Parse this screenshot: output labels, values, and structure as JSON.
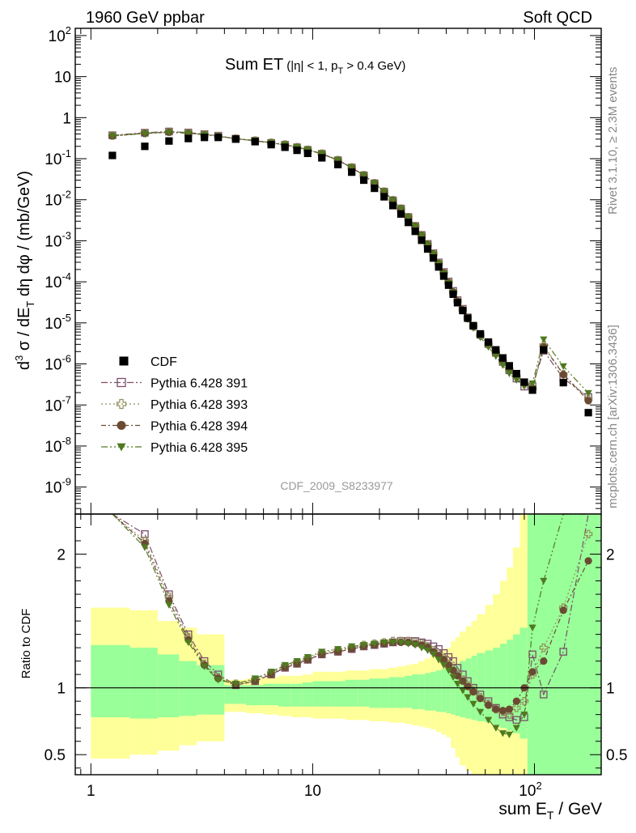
{
  "header": {
    "left": "1960 GeV ppbar",
    "right": "Soft QCD"
  },
  "side_text": {
    "rivet": "Rivet 3.1.10, ≥ 2.3M events",
    "mcplots": "mcplots.cern.ch [arXiv:1306.3436]"
  },
  "chart_data": {
    "type": "scatter",
    "title_main": "Sum ET",
    "title_cond": "(|η| < 1, p",
    "title_cond_sub": "T",
    "title_cond_end": " > 0.4 GeV)",
    "analysis_id": "CDF_2009_S8233977",
    "xlabel_pre": "sum E",
    "xlabel_sub": "T",
    "xlabel_post": " / GeV",
    "ylabel_pre": "d",
    "ylabel_sup": "3",
    "ylabel_mid": " σ / dE",
    "ylabel_sub": "T",
    "ylabel_post": " dη dφ / (mb/GeV)",
    "ratio_ylabel": "Ratio to CDF",
    "x_scale": "log",
    "xlim": [
      0.85,
      200
    ],
    "x_ticks": [
      {
        "v": 1,
        "label": "1"
      },
      {
        "v": 10,
        "label": "10"
      },
      {
        "v": 100,
        "label": "10",
        "sup": "2"
      }
    ],
    "main_y_scale": "log",
    "main_ylim": [
      2.2e-10,
      150
    ],
    "main_y_ticks": [
      {
        "v": 1e-09,
        "label": "10",
        "sup": "-9"
      },
      {
        "v": 1e-08,
        "label": "10",
        "sup": "-8"
      },
      {
        "v": 1e-07,
        "label": "10",
        "sup": "-7"
      },
      {
        "v": 1e-06,
        "label": "10",
        "sup": "-6"
      },
      {
        "v": 1e-05,
        "label": "10",
        "sup": "-5"
      },
      {
        "v": 0.0001,
        "label": "10",
        "sup": "-4"
      },
      {
        "v": 0.001,
        "label": "10",
        "sup": "-3"
      },
      {
        "v": 0.01,
        "label": "10",
        "sup": "-2"
      },
      {
        "v": 0.1,
        "label": "10",
        "sup": "-1"
      },
      {
        "v": 1,
        "label": "1",
        "sup": ""
      },
      {
        "v": 10,
        "label": "10",
        "sup": ""
      },
      {
        "v": 100,
        "label": "10",
        "sup": "2"
      }
    ],
    "ratio_ylim": [
      0.35,
      2.3
    ],
    "ratio_y_ticks": [
      {
        "v": 0.5,
        "label": "0.5"
      },
      {
        "v": 1,
        "label": "1"
      },
      {
        "v": 2,
        "label": "2"
      }
    ],
    "legend_position": "bottom-left",
    "legend": [
      {
        "name": "CDF",
        "marker": "filled-square",
        "color": "#000000"
      },
      {
        "name": "Pythia 6.428 391",
        "marker": "open-square",
        "color": "#7a4f6a",
        "dash": "8,3,2,3"
      },
      {
        "name": "Pythia 6.428 393",
        "marker": "open-cross",
        "color": "#958f5b",
        "dash": "2,3"
      },
      {
        "name": "Pythia 6.428 394",
        "marker": "filled-circle",
        "color": "#6a4a33",
        "dash": "6,3,2,3"
      },
      {
        "name": "Pythia 6.428 395",
        "marker": "filled-triangle-down",
        "color": "#4f7a20",
        "dash": "8,3,2,3,2,3"
      }
    ],
    "cdf_points": [
      [
        1.25,
        0.12
      ],
      [
        1.75,
        0.2
      ],
      [
        2.25,
        0.27
      ],
      [
        2.75,
        0.31
      ],
      [
        3.25,
        0.33
      ],
      [
        3.75,
        0.33
      ],
      [
        4.5,
        0.3
      ],
      [
        5.5,
        0.26
      ],
      [
        6.5,
        0.22
      ],
      [
        7.5,
        0.19
      ],
      [
        8.5,
        0.16
      ],
      [
        9.5,
        0.135
      ],
      [
        11,
        0.105
      ],
      [
        13,
        0.072
      ],
      [
        15,
        0.047
      ],
      [
        17,
        0.03
      ],
      [
        19,
        0.019
      ],
      [
        21,
        0.0118
      ],
      [
        23,
        0.0072
      ],
      [
        25,
        0.0045
      ],
      [
        27,
        0.0028
      ],
      [
        29,
        0.0017
      ],
      [
        31,
        0.00103
      ],
      [
        33,
        0.00063
      ],
      [
        35,
        0.00038
      ],
      [
        37,
        0.00023
      ],
      [
        39,
        0.000138
      ],
      [
        41,
        8.3e-05
      ],
      [
        43,
        5e-05
      ],
      [
        45,
        3.1e-05
      ],
      [
        47.5,
        2e-05
      ],
      [
        50,
        1.3e-05
      ],
      [
        53,
        8.5e-06
      ],
      [
        57,
        5.4e-06
      ],
      [
        62,
        3.4e-06
      ],
      [
        67,
        2.2e-06
      ],
      [
        72,
        1.4e-06
      ],
      [
        77,
        9e-07
      ],
      [
        83,
        5.8e-07
      ],
      [
        90,
        3.6e-07
      ],
      [
        98,
        2.3e-07
      ],
      [
        110,
        2.2e-06
      ],
      [
        135,
        3.5e-07
      ],
      [
        175,
        6.5e-08
      ]
    ],
    "ratio_reference_x": [
      1.25,
      1.75,
      2.25,
      2.75,
      3.25,
      3.75,
      4.5,
      5.5,
      6.5,
      7.5,
      8.5,
      9.5,
      11,
      13,
      15,
      17,
      19,
      21,
      23,
      25,
      27,
      29,
      31,
      33,
      35,
      37,
      39,
      41,
      43,
      45,
      47.5,
      50,
      53,
      57,
      62,
      67,
      72,
      77,
      83,
      90,
      98,
      110,
      135,
      175
    ],
    "series": [
      {
        "name": "Pythia 6.428 391",
        "ratio": [
          3.1,
          2.15,
          1.7,
          1.4,
          1.2,
          1.1,
          1.02,
          1.05,
          1.1,
          1.15,
          1.18,
          1.21,
          1.25,
          1.27,
          1.29,
          1.31,
          1.32,
          1.33,
          1.34,
          1.35,
          1.35,
          1.35,
          1.34,
          1.33,
          1.31,
          1.29,
          1.26,
          1.23,
          1.2,
          1.15,
          1.1,
          1.05,
          1.0,
          0.95,
          0.9,
          0.85,
          0.8,
          0.78,
          0.76,
          0.78,
          1.25,
          0.95,
          1.27,
          2.4
        ]
      },
      {
        "name": "Pythia 6.428 393",
        "ratio": [
          3.05,
          2.1,
          1.68,
          1.38,
          1.18,
          1.08,
          1.03,
          1.06,
          1.11,
          1.16,
          1.19,
          1.22,
          1.26,
          1.28,
          1.3,
          1.32,
          1.33,
          1.34,
          1.35,
          1.35,
          1.35,
          1.34,
          1.33,
          1.31,
          1.28,
          1.25,
          1.22,
          1.18,
          1.14,
          1.1,
          1.06,
          1.02,
          0.98,
          0.93,
          0.88,
          0.84,
          0.82,
          0.8,
          0.85,
          0.9,
          1.1,
          1.3,
          1.6,
          2.15
        ]
      },
      {
        "name": "Pythia 6.428 394",
        "ratio": [
          3.0,
          2.08,
          1.65,
          1.36,
          1.17,
          1.07,
          1.02,
          1.05,
          1.1,
          1.15,
          1.18,
          1.21,
          1.25,
          1.27,
          1.29,
          1.31,
          1.32,
          1.33,
          1.34,
          1.34,
          1.34,
          1.33,
          1.32,
          1.3,
          1.27,
          1.24,
          1.21,
          1.17,
          1.13,
          1.09,
          1.05,
          1.01,
          0.97,
          0.92,
          0.87,
          0.84,
          0.83,
          0.84,
          0.9,
          1.0,
          1.12,
          1.2,
          1.58,
          1.95
        ]
      },
      {
        "name": "Pythia 6.428 395",
        "ratio": [
          2.98,
          2.05,
          1.62,
          1.34,
          1.16,
          1.06,
          1.03,
          1.07,
          1.12,
          1.17,
          1.2,
          1.23,
          1.27,
          1.29,
          1.31,
          1.32,
          1.33,
          1.34,
          1.34,
          1.34,
          1.33,
          1.32,
          1.3,
          1.28,
          1.25,
          1.21,
          1.17,
          1.13,
          1.08,
          1.03,
          0.98,
          0.93,
          0.88,
          0.82,
          0.76,
          0.7,
          0.66,
          0.65,
          0.7,
          0.8,
          1.45,
          1.8,
          2.5,
          3.0
        ]
      }
    ],
    "band_inner_color": "#99ff99",
    "band_outer_color": "#ffff99",
    "uncertainty_bands": [
      {
        "x0": 1.0,
        "x1": 1.5,
        "inner": [
          0.78,
          1.32
        ],
        "outer": [
          0.47,
          1.6
        ]
      },
      {
        "x0": 1.5,
        "x1": 2.0,
        "inner": [
          0.77,
          1.3
        ],
        "outer": [
          0.5,
          1.58
        ]
      },
      {
        "x0": 2.0,
        "x1": 2.5,
        "inner": [
          0.78,
          1.25
        ],
        "outer": [
          0.53,
          1.5
        ]
      },
      {
        "x0": 2.5,
        "x1": 3.0,
        "inner": [
          0.79,
          1.2
        ],
        "outer": [
          0.57,
          1.45
        ]
      },
      {
        "x0": 3.0,
        "x1": 4.0,
        "inner": [
          0.8,
          1.17
        ],
        "outer": [
          0.6,
          1.4
        ]
      },
      {
        "x0": 4.0,
        "x1": 5.0,
        "inner": [
          0.88,
          1.02
        ],
        "outer": [
          0.82,
          1.06
        ]
      },
      {
        "x0": 5.0,
        "x1": 6.0,
        "inner": [
          0.87,
          1.02
        ],
        "outer": [
          0.81,
          1.07
        ]
      },
      {
        "x0": 6.0,
        "x1": 7.0,
        "inner": [
          0.87,
          1.03
        ],
        "outer": [
          0.8,
          1.08
        ]
      },
      {
        "x0": 7.0,
        "x1": 8.0,
        "inner": [
          0.86,
          1.03
        ],
        "outer": [
          0.79,
          1.09
        ]
      },
      {
        "x0": 8.0,
        "x1": 9.0,
        "inner": [
          0.86,
          1.03
        ],
        "outer": [
          0.78,
          1.09
        ]
      },
      {
        "x0": 9.0,
        "x1": 10.0,
        "inner": [
          0.86,
          1.04
        ],
        "outer": [
          0.78,
          1.1
        ]
      },
      {
        "x0": 10.0,
        "x1": 12.0,
        "inner": [
          0.86,
          1.05
        ],
        "outer": [
          0.77,
          1.12
        ]
      },
      {
        "x0": 12.0,
        "x1": 14.0,
        "inner": [
          0.86,
          1.05
        ],
        "outer": [
          0.77,
          1.12
        ]
      },
      {
        "x0": 14.0,
        "x1": 16.0,
        "inner": [
          0.86,
          1.06
        ],
        "outer": [
          0.76,
          1.13
        ]
      },
      {
        "x0": 16.0,
        "x1": 18.0,
        "inner": [
          0.86,
          1.06
        ],
        "outer": [
          0.76,
          1.13
        ]
      },
      {
        "x0": 18.0,
        "x1": 20.0,
        "inner": [
          0.85,
          1.07
        ],
        "outer": [
          0.75,
          1.14
        ]
      },
      {
        "x0": 20.0,
        "x1": 22.0,
        "inner": [
          0.85,
          1.07
        ],
        "outer": [
          0.75,
          1.14
        ]
      },
      {
        "x0": 22.0,
        "x1": 24.0,
        "inner": [
          0.85,
          1.08
        ],
        "outer": [
          0.74,
          1.15
        ]
      },
      {
        "x0": 24.0,
        "x1": 26.0,
        "inner": [
          0.85,
          1.08
        ],
        "outer": [
          0.74,
          1.16
        ]
      },
      {
        "x0": 26.0,
        "x1": 28.0,
        "inner": [
          0.85,
          1.09
        ],
        "outer": [
          0.73,
          1.17
        ]
      },
      {
        "x0": 28.0,
        "x1": 30.0,
        "inner": [
          0.84,
          1.1
        ],
        "outer": [
          0.72,
          1.18
        ]
      },
      {
        "x0": 30.0,
        "x1": 32.0,
        "inner": [
          0.84,
          1.1
        ],
        "outer": [
          0.71,
          1.2
        ]
      },
      {
        "x0": 32.0,
        "x1": 34.0,
        "inner": [
          0.83,
          1.11
        ],
        "outer": [
          0.7,
          1.22
        ]
      },
      {
        "x0": 34.0,
        "x1": 36.0,
        "inner": [
          0.83,
          1.12
        ],
        "outer": [
          0.69,
          1.24
        ]
      },
      {
        "x0": 36.0,
        "x1": 38.0,
        "inner": [
          0.82,
          1.13
        ],
        "outer": [
          0.67,
          1.26
        ]
      },
      {
        "x0": 38.0,
        "x1": 40.0,
        "inner": [
          0.82,
          1.14
        ],
        "outer": [
          0.65,
          1.28
        ]
      },
      {
        "x0": 40.0,
        "x1": 42.0,
        "inner": [
          0.81,
          1.15
        ],
        "outer": [
          0.63,
          1.3
        ]
      },
      {
        "x0": 42.0,
        "x1": 44.0,
        "inner": [
          0.8,
          1.17
        ],
        "outer": [
          0.55,
          1.35
        ]
      },
      {
        "x0": 44.0,
        "x1": 46.0,
        "inner": [
          0.79,
          1.18
        ],
        "outer": [
          0.48,
          1.38
        ]
      },
      {
        "x0": 46.0,
        "x1": 49.0,
        "inner": [
          0.78,
          1.2
        ],
        "outer": [
          0.42,
          1.42
        ]
      },
      {
        "x0": 49.0,
        "x1": 52.0,
        "inner": [
          0.77,
          1.22
        ],
        "outer": [
          0.38,
          1.46
        ]
      },
      {
        "x0": 52.0,
        "x1": 55.0,
        "inner": [
          0.76,
          1.24
        ],
        "outer": [
          0.35,
          1.5
        ]
      },
      {
        "x0": 55.0,
        "x1": 60.0,
        "inner": [
          0.75,
          1.26
        ],
        "outer": [
          0.35,
          1.55
        ]
      },
      {
        "x0": 60.0,
        "x1": 65.0,
        "inner": [
          0.74,
          1.28
        ],
        "outer": [
          0.35,
          1.62
        ]
      },
      {
        "x0": 65.0,
        "x1": 70.0,
        "inner": [
          0.72,
          1.3
        ],
        "outer": [
          0.35,
          1.7
        ]
      },
      {
        "x0": 70.0,
        "x1": 75.0,
        "inner": [
          0.7,
          1.33
        ],
        "outer": [
          0.35,
          1.8
        ]
      },
      {
        "x0": 75.0,
        "x1": 80.0,
        "inner": [
          0.68,
          1.36
        ],
        "outer": [
          0.35,
          1.9
        ]
      },
      {
        "x0": 80.0,
        "x1": 86.0,
        "inner": [
          0.66,
          1.4
        ],
        "outer": [
          0.35,
          2.05
        ]
      },
      {
        "x0": 86.0,
        "x1": 93.0,
        "inner": [
          0.62,
          1.45
        ],
        "outer": [
          0.35,
          2.3
        ]
      },
      {
        "x0": 93.0,
        "x1": 200.0,
        "inner": [
          0.35,
          2.3
        ],
        "outer": [
          0.35,
          2.3
        ]
      }
    ]
  }
}
